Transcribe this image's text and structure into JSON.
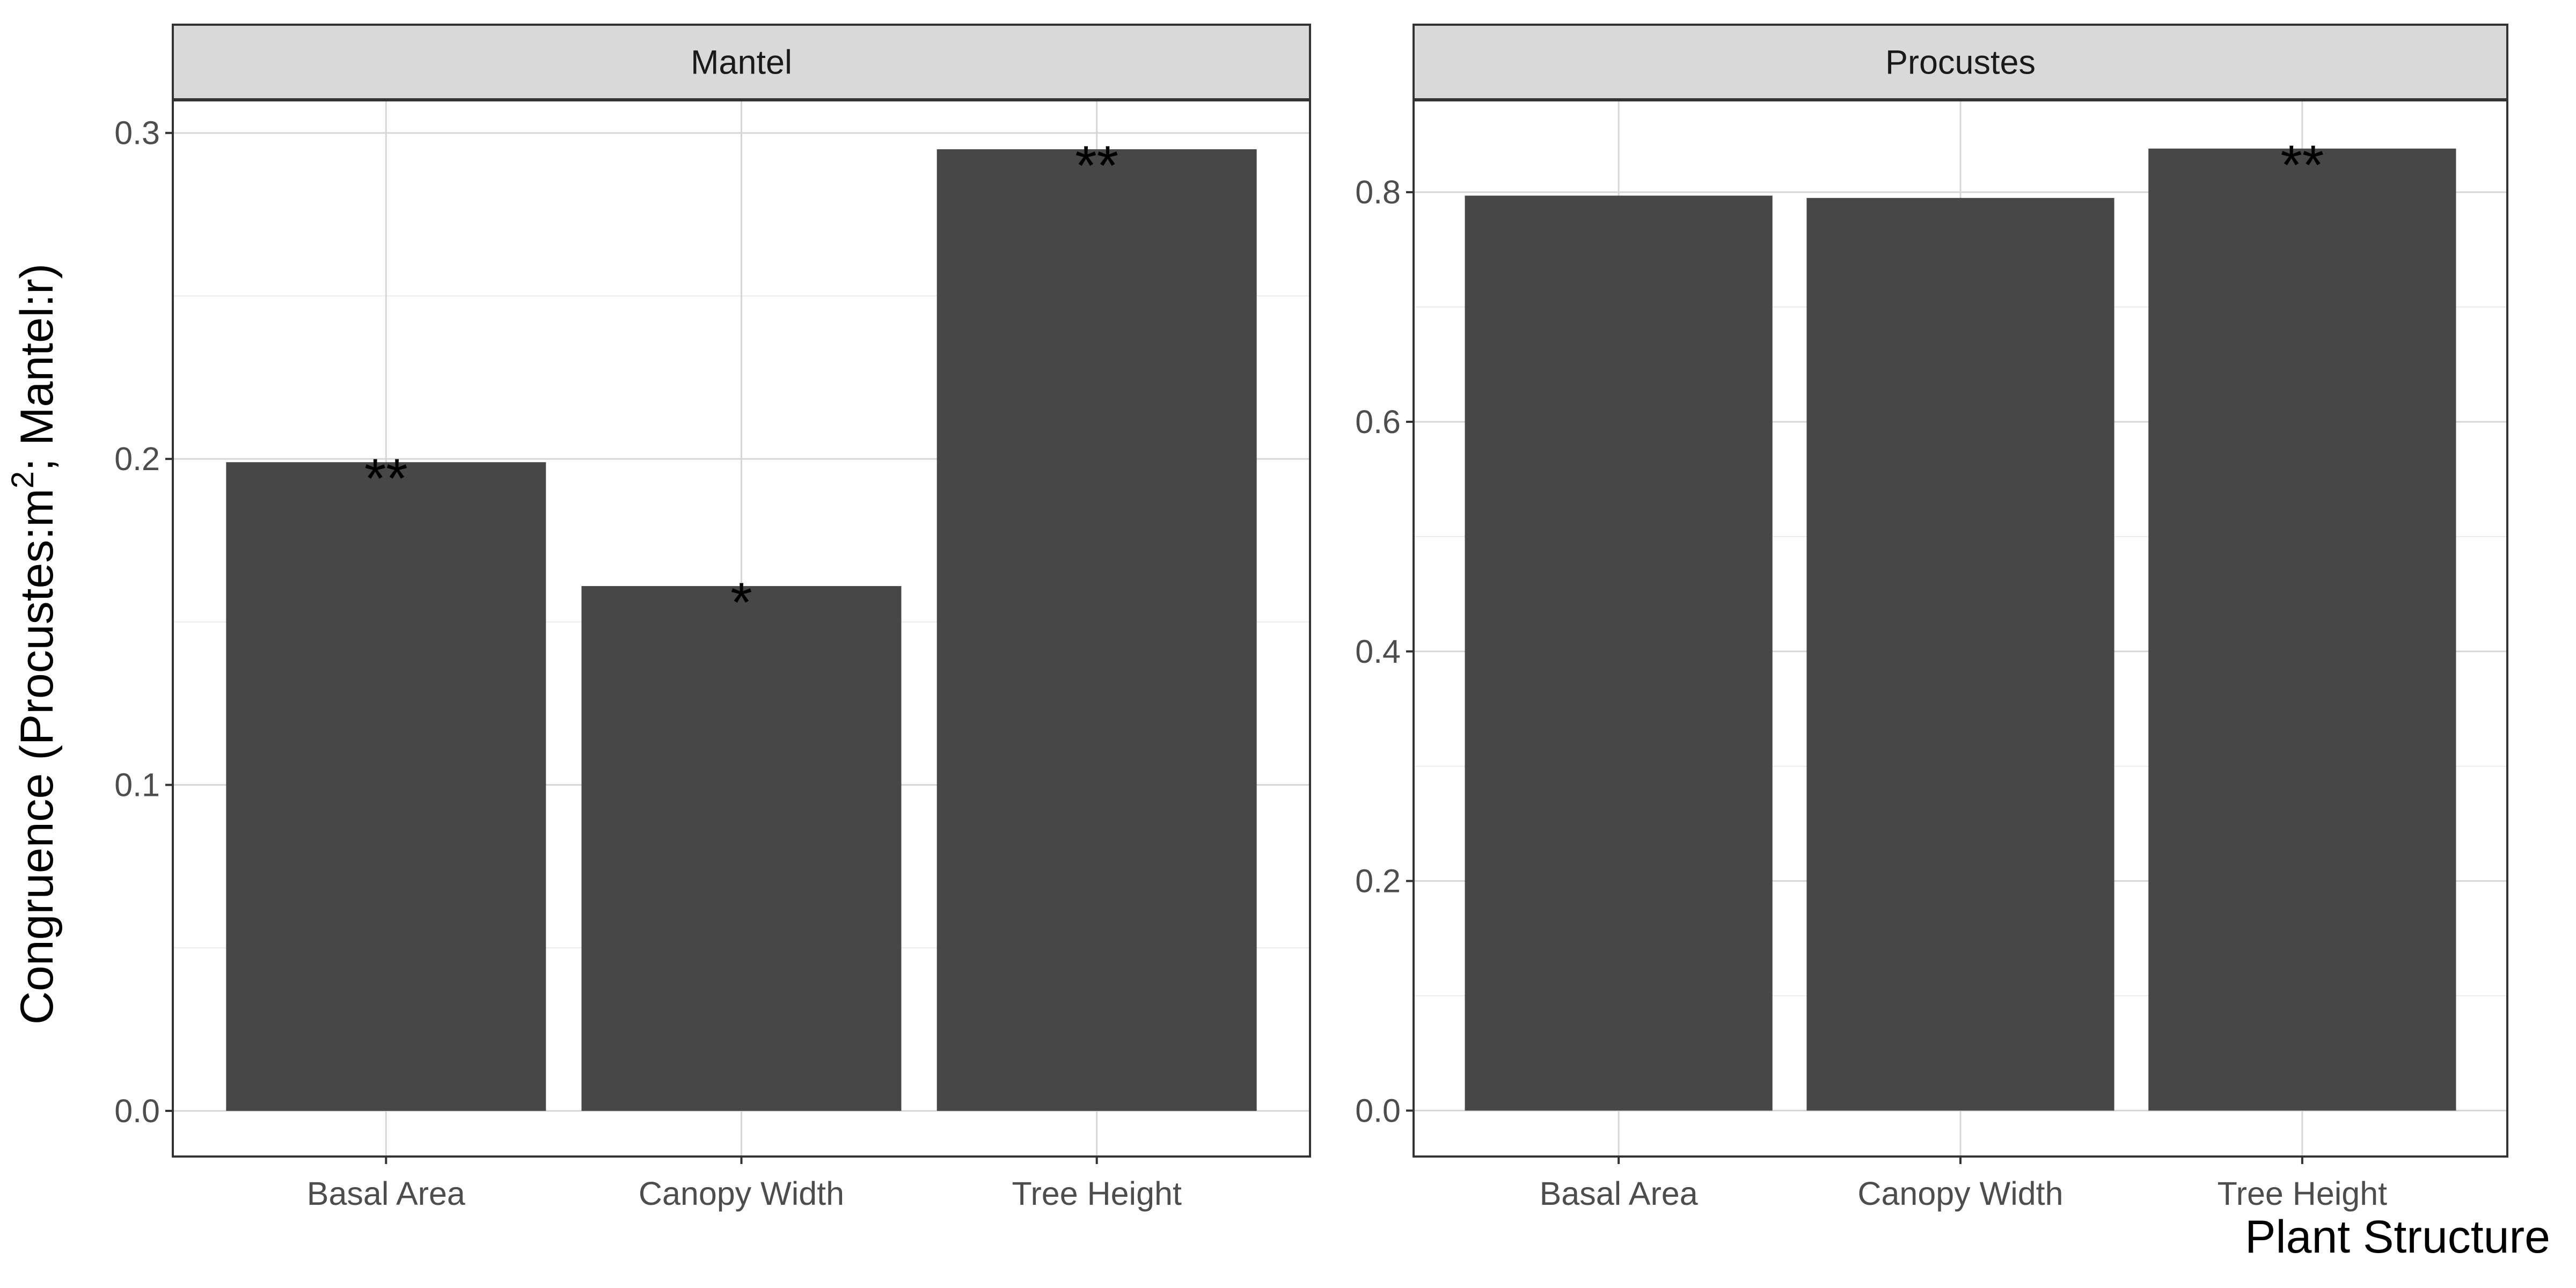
{
  "chart_data": {
    "type": "bar",
    "categories": [
      "Basal Area",
      "Canopy Width",
      "Tree Height"
    ],
    "xlabel": "Plant Structure",
    "ylabel": {
      "prefix": "Congruence (Procustes:m",
      "superscript": "2",
      "suffix": "; Mantel:r)"
    },
    "grid": true,
    "bar_color": "#474747",
    "panels": [
      {
        "strip": "Mantel",
        "values": [
          0.199,
          0.161,
          0.295
        ],
        "annotations": [
          "**",
          "*",
          "**"
        ],
        "ylim": [
          -0.014,
          0.31
        ],
        "yticks": [
          0.0,
          0.1,
          0.2,
          0.3
        ],
        "ytick_labels": [
          "0.0",
          "0.1",
          "0.2",
          "0.3"
        ]
      },
      {
        "strip": "Procustes",
        "values": [
          0.797,
          0.795,
          0.838
        ],
        "annotations": [
          "",
          "",
          "**"
        ],
        "ylim": [
          -0.04,
          0.88
        ],
        "yticks": [
          0.0,
          0.2,
          0.4,
          0.6,
          0.8
        ],
        "ytick_labels": [
          "0.0",
          "0.2",
          "0.4",
          "0.6",
          "0.8"
        ]
      }
    ]
  }
}
